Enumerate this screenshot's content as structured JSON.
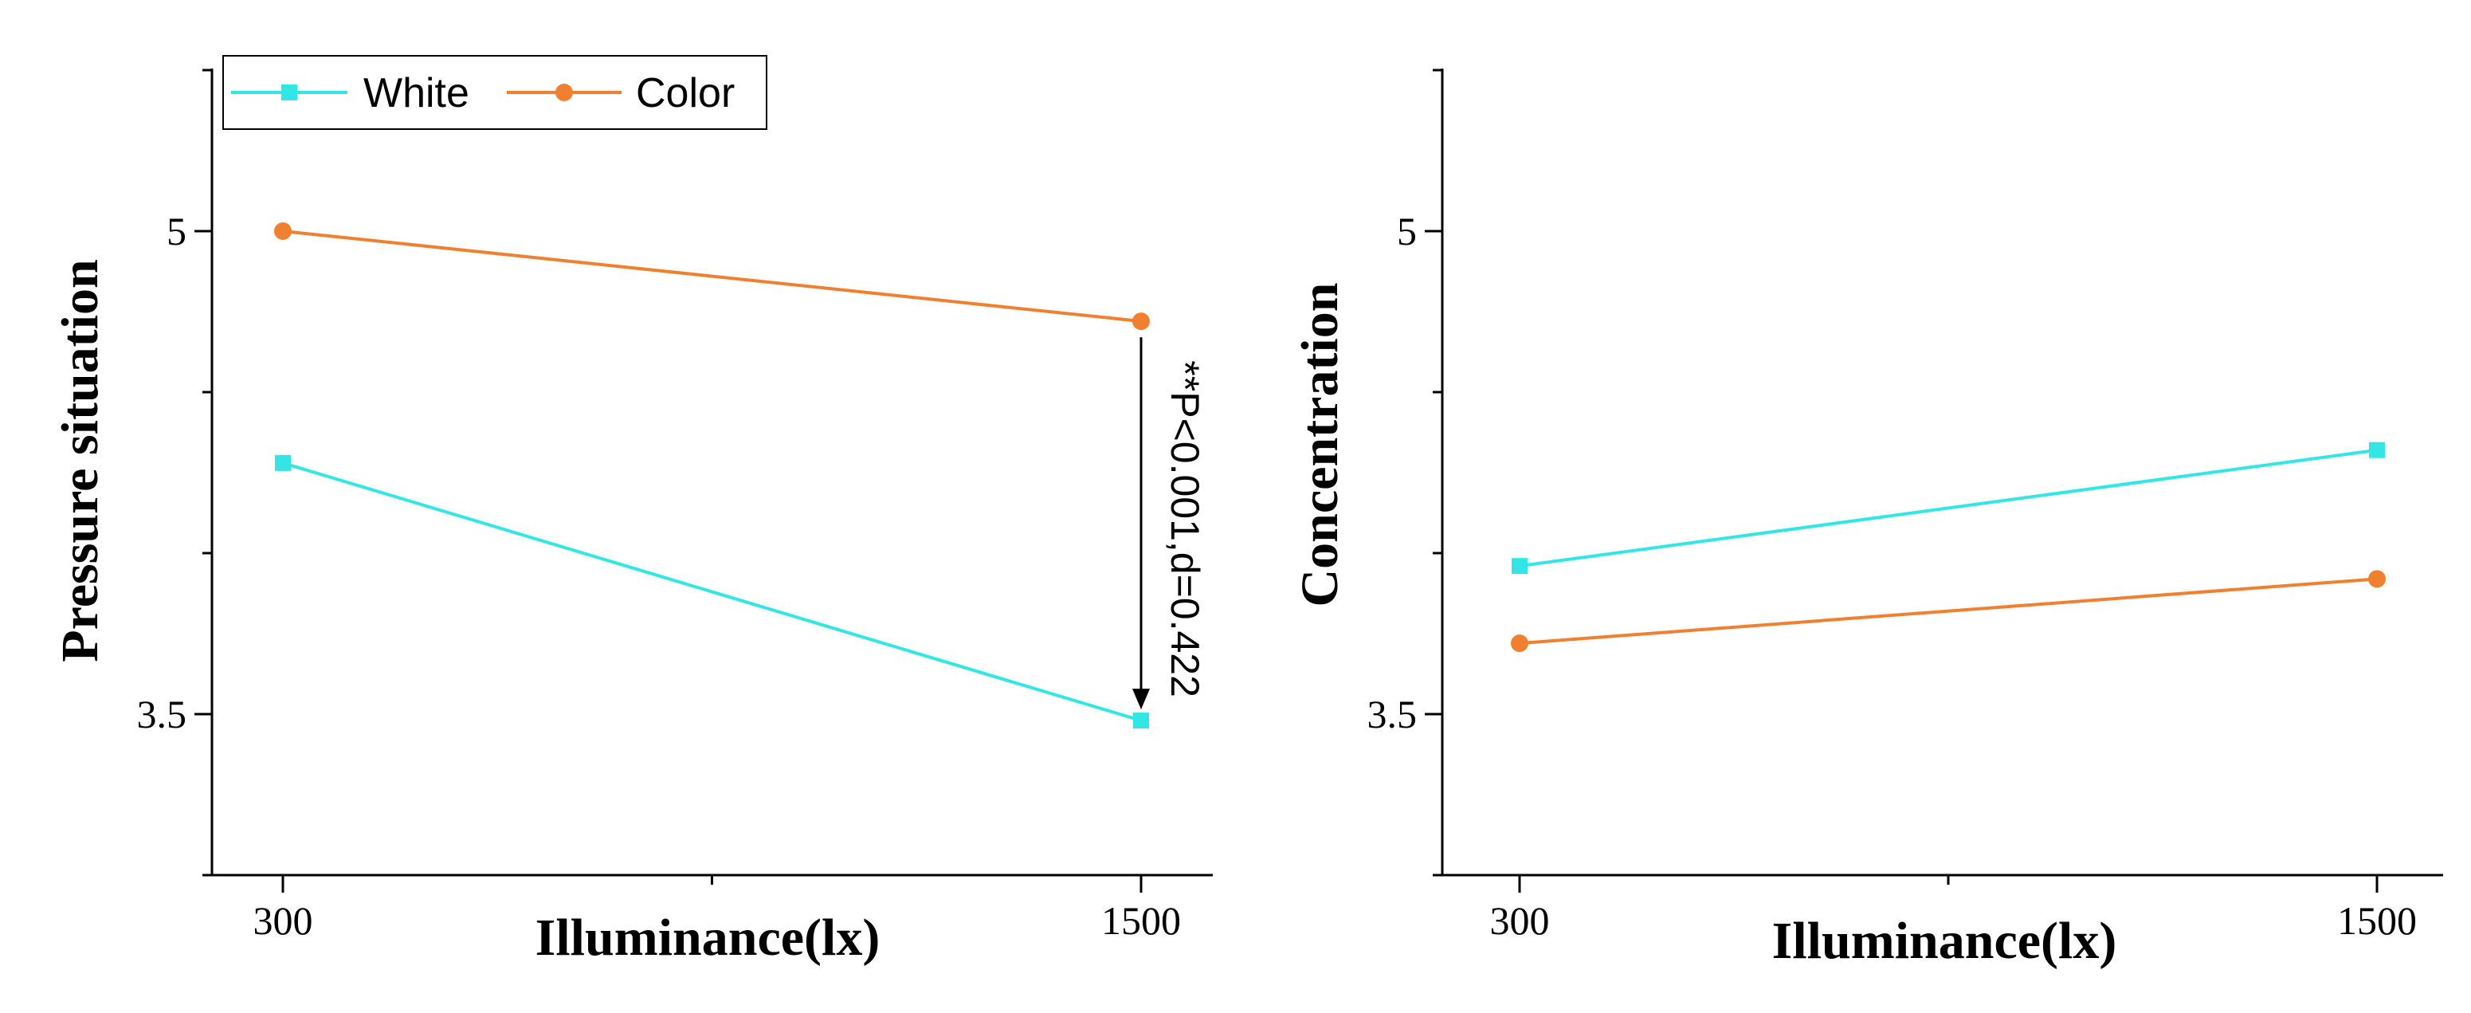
{
  "chart_data": [
    {
      "type": "line",
      "title": "",
      "xlabel": "Illuminance(lx)",
      "ylabel": "Pressure situation",
      "categories": [
        "300",
        "1500"
      ],
      "ylim": [
        3.0,
        5.5
      ],
      "yticks": [
        3.5,
        5
      ],
      "ytick_labels": [
        "3.5",
        "5"
      ],
      "grid": false,
      "legend": {
        "placement": "top-left"
      },
      "series": [
        {
          "name": "White",
          "color": "#33E6E6",
          "marker": "square",
          "values": [
            4.28,
            3.48
          ]
        },
        {
          "name": "Color",
          "color": "#F08030",
          "marker": "circle",
          "values": [
            5.0,
            4.72
          ]
        }
      ],
      "annotation": {
        "text": "**P<0.001,d=0.422",
        "at_category": "1500",
        "from_value": 4.72,
        "to_value": 3.48
      }
    },
    {
      "type": "line",
      "title": "",
      "xlabel": "Illuminance(lx)",
      "ylabel": "Concentration",
      "categories": [
        "300",
        "1500"
      ],
      "ylim": [
        3.0,
        5.5
      ],
      "yticks": [
        3.5,
        5
      ],
      "ytick_labels": [
        "3.5",
        "5"
      ],
      "grid": false,
      "series": [
        {
          "name": "White",
          "color": "#33E6E6",
          "marker": "square",
          "values": [
            3.96,
            4.32
          ]
        },
        {
          "name": "Color",
          "color": "#F08030",
          "marker": "circle",
          "values": [
            3.72,
            3.92
          ]
        }
      ]
    }
  ]
}
